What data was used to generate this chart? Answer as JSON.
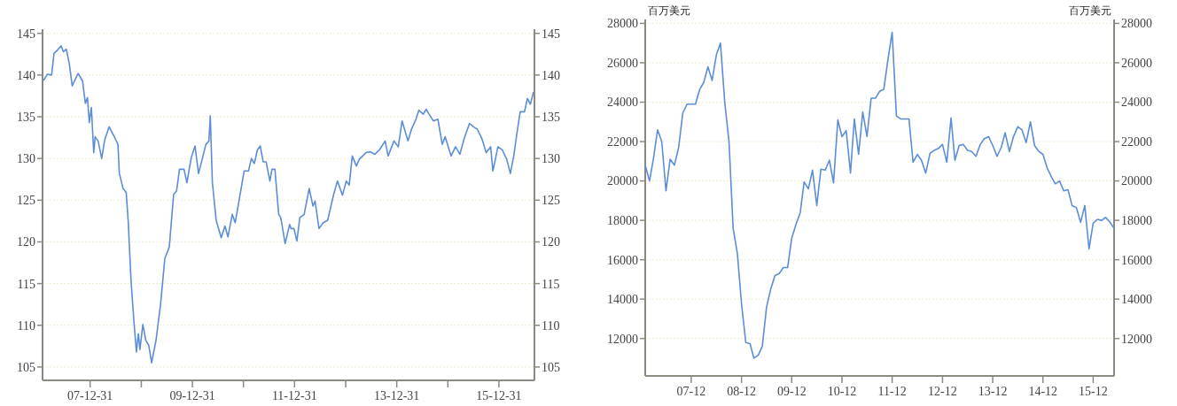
{
  "chart_data": [
    {
      "type": "line",
      "grid": "y",
      "xlim": [
        "2007-01-25",
        "2016-09-10"
      ],
      "ylim": [
        103.4,
        145.5
      ],
      "yticks": [
        105,
        110,
        115,
        120,
        125,
        130,
        135,
        140,
        145
      ],
      "y2lim": [
        103.4,
        145.5
      ],
      "y2ticks": [
        105,
        110,
        115,
        120,
        125,
        130,
        135,
        140,
        145
      ],
      "xticks": [
        {
          "value": "2007-12-31",
          "label": "07-12-31"
        },
        {
          "value": "2008-12-31",
          "label": null
        },
        {
          "value": "2009-12-31",
          "label": "09-12-31"
        },
        {
          "value": "2010-12-31",
          "label": null
        },
        {
          "value": "2011-12-31",
          "label": "11-12-31"
        },
        {
          "value": "2012-12-31",
          "label": null
        },
        {
          "value": "2013-12-31",
          "label": "13-12-31"
        },
        {
          "value": "2014-12-31",
          "label": null
        },
        {
          "value": "2015-12-31",
          "label": "15-12-31"
        }
      ],
      "series": [
        {
          "color": "#5b8ed6",
          "x": [
            "2007-02-03",
            "2007-02-28",
            "2007-03-31",
            "2007-04-17",
            "2007-05-12",
            "2007-06-07",
            "2007-06-23",
            "2007-07-14",
            "2007-08-04",
            "2007-08-25",
            "2007-10-06",
            "2007-11-07",
            "2007-11-27",
            "2007-12-12",
            "2007-12-25",
            "2008-01-09",
            "2008-01-26",
            "2008-02-05",
            "2008-02-26",
            "2008-03-23",
            "2008-04-13",
            "2008-05-15",
            "2008-06-15",
            "2008-07-17",
            "2008-07-27",
            "2008-08-23",
            "2008-09-14",
            "2008-09-28",
            "2008-10-19",
            "2008-11-09",
            "2008-11-26",
            "2008-12-10",
            "2008-12-21",
            "2009-01-11",
            "2009-02-01",
            "2009-02-22",
            "2009-03-15",
            "2009-04-15",
            "2009-05-17",
            "2009-06-17",
            "2009-07-19",
            "2009-08-19",
            "2009-09-09",
            "2009-09-30",
            "2009-11-01",
            "2009-11-22",
            "2009-12-23",
            "2010-01-19",
            "2010-02-13",
            "2010-03-17",
            "2010-04-07",
            "2010-04-28",
            "2010-05-08",
            "2010-05-23",
            "2010-06-19",
            "2010-07-25",
            "2010-08-21",
            "2010-09-11",
            "2010-10-12",
            "2010-11-02",
            "2010-11-23",
            "2011-01-05",
            "2011-02-05",
            "2011-02-26",
            "2011-03-19",
            "2011-04-09",
            "2011-04-30",
            "2011-05-21",
            "2011-06-11",
            "2011-07-08",
            "2011-07-23",
            "2011-08-13",
            "2011-09-09",
            "2011-09-24",
            "2011-10-25",
            "2011-11-26",
            "2011-12-06",
            "2011-12-27",
            "2012-01-17",
            "2012-02-07",
            "2012-03-09",
            "2012-04-14",
            "2012-05-11",
            "2012-05-26",
            "2012-06-23",
            "2012-07-24",
            "2012-08-24",
            "2012-10-06",
            "2012-11-02",
            "2012-12-08",
            "2013-01-04",
            "2013-01-25",
            "2013-02-16",
            "2013-03-17",
            "2013-04-07",
            "2013-05-25",
            "2013-06-26",
            "2013-07-27",
            "2013-08-28",
            "2013-10-09",
            "2013-10-30",
            "2013-12-11",
            "2014-01-11",
            "2014-02-07",
            "2014-03-21",
            "2014-04-15",
            "2014-05-17",
            "2014-06-07",
            "2014-07-08",
            "2014-07-29",
            "2014-08-19",
            "2014-09-19",
            "2014-10-21",
            "2014-11-21",
            "2014-12-12",
            "2015-01-23",
            "2015-02-24",
            "2015-03-27",
            "2015-04-27",
            "2015-06-04",
            "2015-07-03",
            "2015-07-30",
            "2015-08-31",
            "2015-10-01",
            "2015-11-02",
            "2015-11-18",
            "2015-12-24",
            "2016-01-25",
            "2016-02-25",
            "2016-03-22",
            "2016-04-15",
            "2016-05-06",
            "2016-05-31",
            "2016-07-01",
            "2016-07-22",
            "2016-08-12",
            "2016-09-02"
          ],
          "values": [
            139.4,
            140.1,
            140,
            142.6,
            143,
            143.5,
            142.8,
            143.1,
            141.4,
            138.7,
            140.2,
            139.3,
            136.6,
            137.3,
            134.3,
            136.1,
            130.7,
            132.6,
            132.1,
            130,
            132.2,
            133.8,
            132.8,
            131.7,
            128.2,
            126.4,
            125.9,
            122.6,
            115.2,
            110.3,
            106.8,
            109,
            107.1,
            110.1,
            108.2,
            107.6,
            105.5,
            108.2,
            112.4,
            118,
            119.4,
            125.7,
            126.1,
            128.7,
            128.7,
            127.1,
            130.1,
            131.5,
            128.2,
            130.3,
            131.7,
            132.1,
            135.1,
            127.1,
            122.6,
            120.5,
            121.9,
            120.6,
            123.3,
            122.3,
            124.3,
            128.5,
            128.5,
            130,
            129.4,
            131,
            131.5,
            129.6,
            129.6,
            127.3,
            128.7,
            128.7,
            123.3,
            122.9,
            119.8,
            122.1,
            121.6,
            121.6,
            120.1,
            122.9,
            123.3,
            126.4,
            124.3,
            124.9,
            121.6,
            122.3,
            122.6,
            125.7,
            127.3,
            125.6,
            127.3,
            126.8,
            130.3,
            129.1,
            129.9,
            130.7,
            130.8,
            130.5,
            131,
            132.1,
            130.3,
            132.1,
            131.4,
            134.5,
            132.1,
            133.5,
            134.7,
            135.8,
            135.3,
            135.9,
            135.3,
            134.5,
            134.7,
            131.7,
            132.6,
            130.3,
            131.4,
            130.5,
            132.4,
            134.2,
            133.8,
            133.5,
            132.4,
            130.7,
            131.4,
            128.5,
            131.4,
            131,
            129.9,
            128.2,
            130.3,
            132.8,
            135.6,
            135.6,
            137.2,
            136.5,
            137.9
          ]
        }
      ]
    },
    {
      "type": "line",
      "grid": "y",
      "ylabel": "百万美元",
      "y2label": "百万美元",
      "xlim": [
        "2007-01",
        "2016-05"
      ],
      "ylim": [
        10100,
        28200
      ],
      "yticks": [
        12000,
        14000,
        16000,
        18000,
        20000,
        22000,
        24000,
        26000,
        28000
      ],
      "y2lim": [
        10100,
        28200
      ],
      "y2ticks": [
        12000,
        14000,
        16000,
        18000,
        20000,
        22000,
        24000,
        26000,
        28000
      ],
      "xticks": [
        {
          "value": "2007-12",
          "label": "07-12"
        },
        {
          "value": "2008-12",
          "label": "08-12"
        },
        {
          "value": "2009-12",
          "label": "09-12"
        },
        {
          "value": "2010-12",
          "label": "10-12"
        },
        {
          "value": "2011-12",
          "label": "11-12"
        },
        {
          "value": "2012-12",
          "label": "12-12"
        },
        {
          "value": "2013-12",
          "label": "13-12"
        },
        {
          "value": "2014-12",
          "label": "14-12"
        },
        {
          "value": "2015-12",
          "label": "15-12"
        }
      ],
      "series": [
        {
          "color": "#5b8ed6",
          "x": [
            "2007-01",
            "2007-02",
            "2007-03",
            "2007-04",
            "2007-05",
            "2007-06",
            "2007-07",
            "2007-08",
            "2007-09",
            "2007-10",
            "2007-11",
            "2007-12",
            "2008-01",
            "2008-02",
            "2008-03",
            "2008-04",
            "2008-05",
            "2008-06",
            "2008-07",
            "2008-08",
            "2008-09",
            "2008-10",
            "2008-11",
            "2008-12",
            "2009-01",
            "2009-02",
            "2009-03",
            "2009-04",
            "2009-05",
            "2009-06",
            "2009-07",
            "2009-08",
            "2009-09",
            "2009-10",
            "2009-11",
            "2009-12",
            "2010-01",
            "2010-02",
            "2010-03",
            "2010-04",
            "2010-05",
            "2010-06",
            "2010-07",
            "2010-08",
            "2010-09",
            "2010-10",
            "2010-11",
            "2010-12",
            "2011-01",
            "2011-02",
            "2011-03",
            "2011-04",
            "2011-05",
            "2011-06",
            "2011-07",
            "2011-08",
            "2011-09",
            "2011-10",
            "2011-11",
            "2011-12",
            "2012-01",
            "2012-02",
            "2012-03",
            "2012-04",
            "2012-05",
            "2012-06",
            "2012-07",
            "2012-08",
            "2012-09",
            "2012-10",
            "2012-11",
            "2012-12",
            "2013-01",
            "2013-02",
            "2013-03",
            "2013-04",
            "2013-05",
            "2013-06",
            "2013-07",
            "2013-08",
            "2013-09",
            "2013-10",
            "2013-11",
            "2013-12",
            "2014-01",
            "2014-02",
            "2014-03",
            "2014-04",
            "2014-05",
            "2014-06",
            "2014-07",
            "2014-08",
            "2014-09",
            "2014-10",
            "2014-11",
            "2014-12",
            "2015-01",
            "2015-02",
            "2015-03",
            "2015-04",
            "2015-05",
            "2015-06",
            "2015-07",
            "2015-08",
            "2015-09",
            "2015-10",
            "2015-11",
            "2015-12",
            "2016-01",
            "2016-02",
            "2016-03",
            "2016-04",
            "2016-05"
          ],
          "values": [
            20800,
            20000,
            21100,
            22600,
            22000,
            19500,
            21100,
            20800,
            21700,
            23450,
            23900,
            23900,
            23900,
            24650,
            25000,
            25800,
            25100,
            26400,
            27000,
            24000,
            22000,
            17600,
            16300,
            13760,
            11800,
            11740,
            11000,
            11150,
            11600,
            13600,
            14500,
            15200,
            15300,
            15600,
            15600,
            17100,
            17800,
            18400,
            19950,
            19600,
            20550,
            18750,
            20600,
            20550,
            21050,
            19900,
            23100,
            22250,
            22550,
            20400,
            23150,
            21350,
            23500,
            22250,
            24200,
            24200,
            24550,
            24650,
            26200,
            27550,
            23300,
            23150,
            23150,
            23150,
            20950,
            21350,
            21050,
            20400,
            21400,
            21550,
            21650,
            21850,
            20950,
            23200,
            21050,
            21800,
            21850,
            21550,
            21500,
            21250,
            21850,
            22150,
            22250,
            21800,
            21250,
            21700,
            22450,
            21500,
            22250,
            22750,
            22600,
            21950,
            23000,
            21800,
            21500,
            21350,
            20650,
            20200,
            19850,
            20000,
            19500,
            19550,
            18750,
            18650,
            17900,
            18750,
            16550,
            17850,
            18050,
            18000,
            18150,
            17900,
            17600
          ]
        }
      ]
    }
  ]
}
